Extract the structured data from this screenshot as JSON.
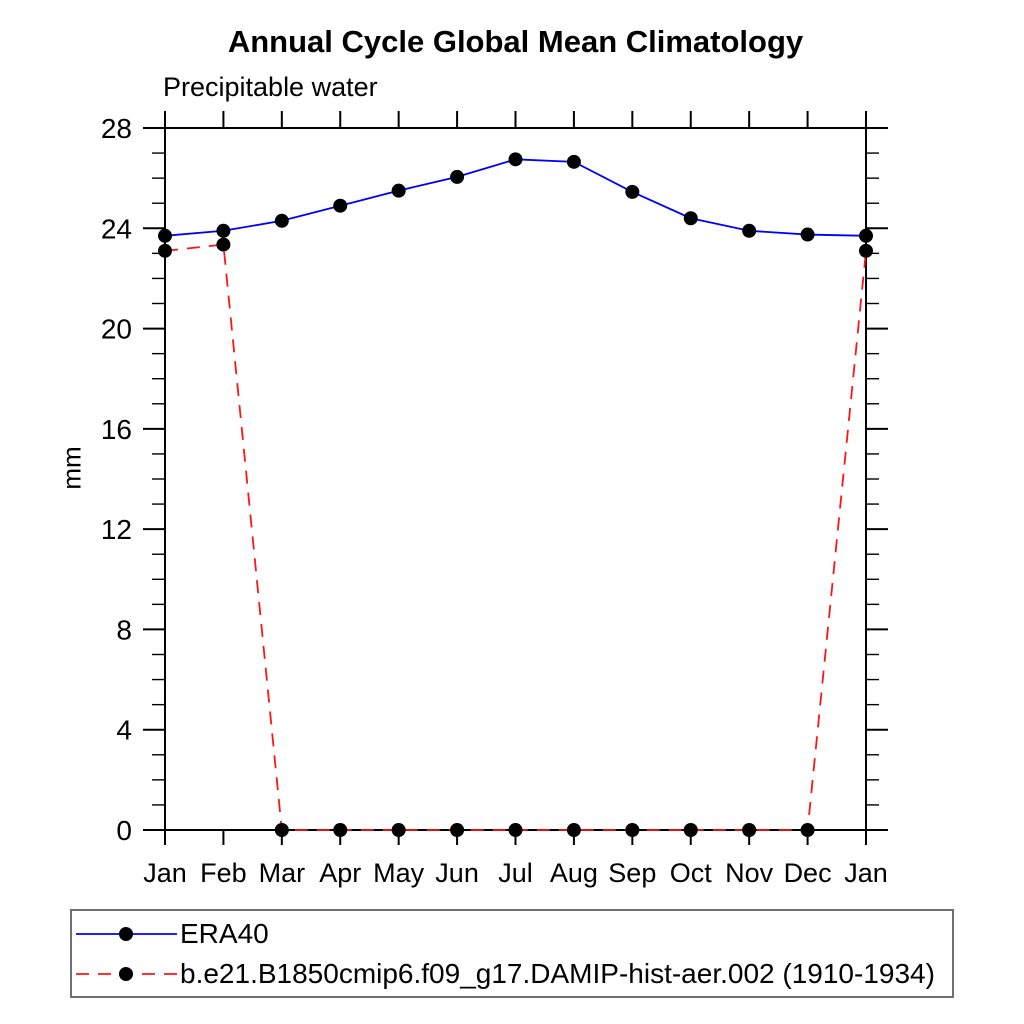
{
  "page": {
    "background": "#ffffff"
  },
  "chart_data": {
    "type": "line",
    "title": "Annual Cycle Global Mean Climatology",
    "subtitle": "Precipitable water",
    "ylabel": "mm",
    "xlabel": "",
    "categories": [
      "Jan",
      "Feb",
      "Mar",
      "Apr",
      "May",
      "Jun",
      "Jul",
      "Aug",
      "Sep",
      "Oct",
      "Nov",
      "Dec",
      "Jan"
    ],
    "ylim": [
      0,
      28
    ],
    "yticks": [
      0,
      4,
      8,
      12,
      16,
      20,
      24,
      28
    ],
    "y_minor_step": 1,
    "grid": false,
    "legend_position": "bottom-left-box",
    "axis_color": "#000000",
    "marker_color": "#000000",
    "series": [
      {
        "name": "ERA40",
        "color": "#0000ff",
        "line_style": "solid",
        "marker": "filled-circle",
        "values": [
          23.7,
          23.9,
          24.3,
          24.9,
          25.5,
          26.05,
          26.75,
          26.65,
          25.45,
          24.4,
          23.9,
          23.75,
          23.7
        ]
      },
      {
        "name": "b.e21.B1850cmip6.f09_g17.DAMIP-hist-aer.002 (1910-1934)",
        "color": "#ff1414",
        "line_style": "dashed",
        "marker": "filled-circle",
        "values": [
          23.1,
          23.35,
          0.0,
          0.0,
          0.0,
          0.0,
          0.0,
          0.0,
          0.0,
          0.0,
          0.0,
          0.0,
          23.1
        ]
      }
    ]
  }
}
